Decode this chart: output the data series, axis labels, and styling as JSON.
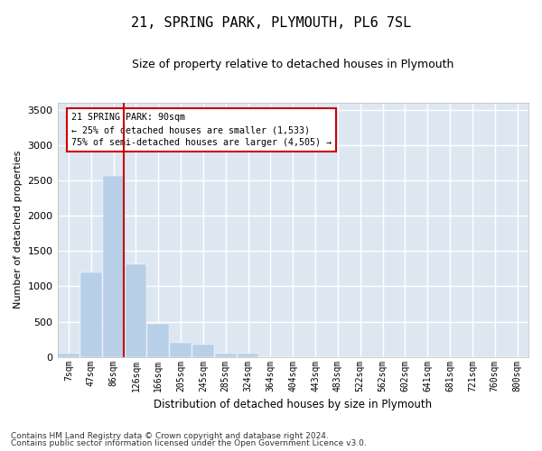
{
  "title": "21, SPRING PARK, PLYMOUTH, PL6 7SL",
  "subtitle": "Size of property relative to detached houses in Plymouth",
  "xlabel": "Distribution of detached houses by size in Plymouth",
  "ylabel": "Number of detached properties",
  "footnote1": "Contains HM Land Registry data © Crown copyright and database right 2024.",
  "footnote2": "Contains public sector information licensed under the Open Government Licence v3.0.",
  "annotation_title": "21 SPRING PARK: 90sqm",
  "annotation_line1": "← 25% of detached houses are smaller (1,533)",
  "annotation_line2": "75% of semi-detached houses are larger (4,505) →",
  "bar_color": "#b8cfe8",
  "bar_edge_color": "#b8cfe8",
  "background_color": "#dde7f2",
  "grid_color": "#ffffff",
  "annotation_box_color": "#cc0000",
  "vline_color": "#cc0000",
  "categories": [
    "7sqm",
    "47sqm",
    "86sqm",
    "126sqm",
    "166sqm",
    "205sqm",
    "245sqm",
    "285sqm",
    "324sqm",
    "364sqm",
    "404sqm",
    "443sqm",
    "483sqm",
    "522sqm",
    "562sqm",
    "602sqm",
    "641sqm",
    "681sqm",
    "721sqm",
    "760sqm",
    "800sqm"
  ],
  "values": [
    50,
    1200,
    2570,
    1310,
    470,
    200,
    170,
    50,
    50,
    0,
    0,
    0,
    0,
    0,
    0,
    0,
    0,
    0,
    0,
    0,
    0
  ],
  "ylim": [
    0,
    3600
  ],
  "yticks": [
    0,
    500,
    1000,
    1500,
    2000,
    2500,
    3000,
    3500
  ],
  "vline_x_index": 2,
  "figsize": [
    6.0,
    5.0
  ],
  "dpi": 100
}
